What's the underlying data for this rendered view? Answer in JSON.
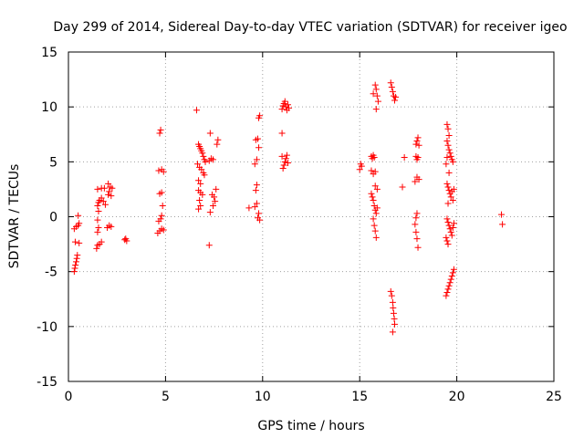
{
  "chart_data": {
    "type": "scatter",
    "title": "Day 299 of 2014, Sidereal Day-to-day VTEC variation (SDTVAR) for receiver igeo",
    "xlabel": "GPS time / hours",
    "ylabel": "SDTVAR / TECUs",
    "xlim": [
      0,
      25
    ],
    "ylim": [
      -15,
      15
    ],
    "xticks": [
      "0",
      "5",
      "10",
      "15",
      "20",
      "25"
    ],
    "yticks": [
      "15",
      "10",
      "5",
      "0",
      "-5",
      "-10",
      "-15"
    ],
    "grid": true,
    "marker": "plus",
    "color": "#ff0000",
    "series": [
      {
        "name": "SDTVAR",
        "points": [
          [
            0.3,
            -5.0
          ],
          [
            0.33,
            -4.7
          ],
          [
            0.36,
            -4.4
          ],
          [
            0.4,
            -4.1
          ],
          [
            0.43,
            -3.8
          ],
          [
            0.46,
            -3.5
          ],
          [
            0.35,
            -2.3
          ],
          [
            0.55,
            -2.4
          ],
          [
            0.3,
            -1.1
          ],
          [
            0.4,
            -0.9
          ],
          [
            0.5,
            -0.8
          ],
          [
            0.55,
            -0.6
          ],
          [
            0.5,
            0.1
          ],
          [
            1.45,
            -2.9
          ],
          [
            1.5,
            -2.6
          ],
          [
            1.6,
            -2.5
          ],
          [
            1.7,
            -2.3
          ],
          [
            1.5,
            -1.4
          ],
          [
            1.55,
            -1.0
          ],
          [
            1.5,
            -0.3
          ],
          [
            1.55,
            0.5
          ],
          [
            1.5,
            1.0
          ],
          [
            1.55,
            1.3
          ],
          [
            1.6,
            1.5
          ],
          [
            1.7,
            1.7
          ],
          [
            1.8,
            1.4
          ],
          [
            1.9,
            1.1
          ],
          [
            1.5,
            2.5
          ],
          [
            1.7,
            2.6
          ],
          [
            1.85,
            2.6
          ],
          [
            2.0,
            -1.0
          ],
          [
            2.1,
            -0.8
          ],
          [
            2.2,
            -0.9
          ],
          [
            2.05,
            2.0
          ],
          [
            2.1,
            2.3
          ],
          [
            2.2,
            1.9
          ],
          [
            2.15,
            2.7
          ],
          [
            2.05,
            3.0
          ],
          [
            2.25,
            2.6
          ],
          [
            2.9,
            -2.1
          ],
          [
            3.0,
            -2.2
          ],
          [
            2.95,
            -2.0
          ],
          [
            4.6,
            -1.5
          ],
          [
            4.7,
            -1.3
          ],
          [
            4.8,
            -1.1
          ],
          [
            4.9,
            -1.2
          ],
          [
            4.65,
            -0.4
          ],
          [
            4.75,
            -0.2
          ],
          [
            4.8,
            0.1
          ],
          [
            4.7,
            2.1
          ],
          [
            4.8,
            2.2
          ],
          [
            4.65,
            4.2
          ],
          [
            4.8,
            4.3
          ],
          [
            4.9,
            4.1
          ],
          [
            4.7,
            7.6
          ],
          [
            4.75,
            7.9
          ],
          [
            4.85,
            1.0
          ],
          [
            6.7,
            6.6
          ],
          [
            6.75,
            6.4
          ],
          [
            6.8,
            6.2
          ],
          [
            6.85,
            6.0
          ],
          [
            6.9,
            5.8
          ],
          [
            6.95,
            5.5
          ],
          [
            7.0,
            5.2
          ],
          [
            7.05,
            5.0
          ],
          [
            6.65,
            4.8
          ],
          [
            6.75,
            4.5
          ],
          [
            6.85,
            4.3
          ],
          [
            6.95,
            4.0
          ],
          [
            7.0,
            3.8
          ],
          [
            6.7,
            3.3
          ],
          [
            6.8,
            3.0
          ],
          [
            6.7,
            2.4
          ],
          [
            6.8,
            2.2
          ],
          [
            6.9,
            2.0
          ],
          [
            6.75,
            1.5
          ],
          [
            6.8,
            1.0
          ],
          [
            6.7,
            0.7
          ],
          [
            6.6,
            9.7
          ],
          [
            7.3,
            7.6
          ],
          [
            7.25,
            5.1
          ],
          [
            7.35,
            5.3
          ],
          [
            7.45,
            5.2
          ],
          [
            7.4,
            2.0
          ],
          [
            7.5,
            1.8
          ],
          [
            7.55,
            1.4
          ],
          [
            7.6,
            2.5
          ],
          [
            7.3,
            0.4
          ],
          [
            7.45,
            1.0
          ],
          [
            7.25,
            -2.6
          ],
          [
            7.65,
            6.6
          ],
          [
            7.7,
            7.0
          ],
          [
            9.3,
            0.8
          ],
          [
            9.6,
            0.9
          ],
          [
            9.65,
            2.4
          ],
          [
            9.7,
            2.9
          ],
          [
            9.6,
            4.8
          ],
          [
            9.7,
            5.2
          ],
          [
            9.8,
            6.3
          ],
          [
            9.65,
            7.0
          ],
          [
            9.75,
            7.1
          ],
          [
            9.8,
            9.0
          ],
          [
            9.85,
            9.2
          ],
          [
            9.75,
            -0.1
          ],
          [
            9.8,
            0.3
          ],
          [
            9.85,
            -0.3
          ],
          [
            9.7,
            1.2
          ],
          [
            11.0,
            9.8
          ],
          [
            11.05,
            10.1
          ],
          [
            11.1,
            10.3
          ],
          [
            11.15,
            10.5
          ],
          [
            11.2,
            10.0
          ],
          [
            11.25,
            9.7
          ],
          [
            11.3,
            10.2
          ],
          [
            11.35,
            9.9
          ],
          [
            11.0,
            7.6
          ],
          [
            11.05,
            4.4
          ],
          [
            11.1,
            4.7
          ],
          [
            11.15,
            5.0
          ],
          [
            11.2,
            5.3
          ],
          [
            11.25,
            5.6
          ],
          [
            11.3,
            4.9
          ],
          [
            11.0,
            5.5
          ],
          [
            15.0,
            4.3
          ],
          [
            15.05,
            4.8
          ],
          [
            15.1,
            4.6
          ],
          [
            15.6,
            5.5
          ],
          [
            15.65,
            5.3
          ],
          [
            15.7,
            5.6
          ],
          [
            15.75,
            5.4
          ],
          [
            15.6,
            4.2
          ],
          [
            15.7,
            3.9
          ],
          [
            15.8,
            4.1
          ],
          [
            15.6,
            2.1
          ],
          [
            15.65,
            1.8
          ],
          [
            15.7,
            1.5
          ],
          [
            15.75,
            1.0
          ],
          [
            15.8,
            0.6
          ],
          [
            15.85,
            0.3
          ],
          [
            15.7,
            -0.2
          ],
          [
            15.75,
            -0.8
          ],
          [
            15.8,
            -1.3
          ],
          [
            15.85,
            -1.9
          ],
          [
            15.9,
            2.5
          ],
          [
            15.8,
            12.0
          ],
          [
            15.85,
            11.6
          ],
          [
            15.9,
            11.0
          ],
          [
            15.95,
            10.5
          ],
          [
            15.85,
            9.8
          ],
          [
            15.7,
            11.2
          ],
          [
            15.8,
            2.8
          ],
          [
            15.9,
            0.8
          ],
          [
            16.6,
            12.2
          ],
          [
            16.65,
            11.8
          ],
          [
            16.7,
            11.4
          ],
          [
            16.75,
            11.0
          ],
          [
            16.8,
            10.6
          ],
          [
            16.85,
            10.9
          ],
          [
            16.6,
            -6.8
          ],
          [
            16.65,
            -7.2
          ],
          [
            16.7,
            -7.8
          ],
          [
            16.72,
            -8.3
          ],
          [
            16.75,
            -8.8
          ],
          [
            16.78,
            -9.3
          ],
          [
            16.8,
            -9.8
          ],
          [
            16.7,
            -10.5
          ],
          [
            17.3,
            5.4
          ],
          [
            17.2,
            2.7
          ],
          [
            17.9,
            6.6
          ],
          [
            17.95,
            6.9
          ],
          [
            18.0,
            7.2
          ],
          [
            18.05,
            6.5
          ],
          [
            17.9,
            5.5
          ],
          [
            17.95,
            5.2
          ],
          [
            18.0,
            5.4
          ],
          [
            17.85,
            3.2
          ],
          [
            17.95,
            3.6
          ],
          [
            18.05,
            3.4
          ],
          [
            17.9,
            -0.1
          ],
          [
            17.95,
            0.3
          ],
          [
            17.85,
            -0.7
          ],
          [
            17.9,
            -1.4
          ],
          [
            17.95,
            -2.0
          ],
          [
            18.0,
            -2.8
          ],
          [
            19.5,
            8.4
          ],
          [
            19.55,
            8.0
          ],
          [
            19.6,
            7.4
          ],
          [
            19.5,
            6.9
          ],
          [
            19.55,
            6.5
          ],
          [
            19.6,
            6.1
          ],
          [
            19.65,
            5.8
          ],
          [
            19.7,
            5.5
          ],
          [
            19.75,
            5.2
          ],
          [
            19.8,
            5.0
          ],
          [
            19.45,
            4.8
          ],
          [
            19.5,
            5.4
          ],
          [
            19.6,
            4.0
          ],
          [
            19.5,
            3.0
          ],
          [
            19.55,
            2.7
          ],
          [
            19.6,
            2.4
          ],
          [
            19.65,
            2.1
          ],
          [
            19.7,
            1.8
          ],
          [
            19.75,
            2.3
          ],
          [
            19.8,
            1.5
          ],
          [
            19.85,
            2.5
          ],
          [
            19.55,
            1.2
          ],
          [
            19.5,
            -0.2
          ],
          [
            19.55,
            -0.5
          ],
          [
            19.6,
            -0.8
          ],
          [
            19.65,
            -1.1
          ],
          [
            19.7,
            -1.4
          ],
          [
            19.75,
            -1.7
          ],
          [
            19.8,
            -1.0
          ],
          [
            19.85,
            -0.6
          ],
          [
            19.45,
            -1.9
          ],
          [
            19.5,
            -2.2
          ],
          [
            19.55,
            -2.5
          ],
          [
            19.45,
            -7.2
          ],
          [
            19.5,
            -6.9
          ],
          [
            19.55,
            -6.6
          ],
          [
            19.6,
            -6.3
          ],
          [
            19.65,
            -6.0
          ],
          [
            19.7,
            -5.7
          ],
          [
            19.75,
            -5.4
          ],
          [
            19.8,
            -5.1
          ],
          [
            19.85,
            -4.8
          ],
          [
            22.3,
            0.2
          ],
          [
            22.35,
            -0.7
          ]
        ]
      }
    ]
  }
}
